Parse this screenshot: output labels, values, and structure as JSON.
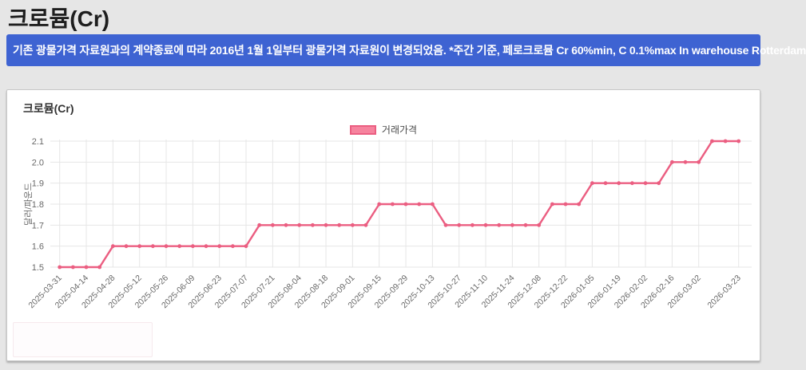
{
  "page": {
    "title": "크로뮴(Cr)",
    "notice": "기존 광물가격 자료원과의 계약종료에 따라 2016년 1월 1일부터 광물가격 자료원이 변경되었음. *주간 기준, 페로크로뮴 Cr 60%min, C 0.1%max In warehouse Rotterdam"
  },
  "card": {
    "title": "크로뮴(Cr)"
  },
  "colors": {
    "banner_blue": "#3e63d2",
    "line_pink": "#eb5e81",
    "legend_fill": "#f6839e",
    "grid": "#e6e6e6",
    "tick_text": "#686868"
  },
  "chart_data": {
    "type": "line",
    "title": "크로뮴(Cr)",
    "ylabel": "달러/파운드",
    "ylim": [
      1.5,
      2.1
    ],
    "yticks": [
      2.1,
      2.0,
      1.9,
      1.8,
      1.7,
      1.6,
      1.5
    ],
    "grid": true,
    "legend_position": "top",
    "x": [
      "2025-03-31",
      "2025-04-07",
      "2025-04-14",
      "2025-04-21",
      "2025-04-28",
      "2025-05-05",
      "2025-05-12",
      "2025-05-19",
      "2025-05-26",
      "2025-06-02",
      "2025-06-09",
      "2025-06-16",
      "2025-06-23",
      "2025-06-30",
      "2025-07-07",
      "2025-07-14",
      "2025-07-21",
      "2025-07-28",
      "2025-08-04",
      "2025-08-11",
      "2025-08-18",
      "2025-08-25",
      "2025-09-01",
      "2025-09-08",
      "2025-09-15",
      "2025-09-22",
      "2025-09-29",
      "2025-10-06",
      "2025-10-13",
      "2025-10-20",
      "2025-10-27",
      "2025-11-03",
      "2025-11-10",
      "2025-11-17",
      "2025-11-24",
      "2025-12-01",
      "2025-12-08",
      "2025-12-15",
      "2025-12-22",
      "2025-12-29",
      "2026-01-05",
      "2026-01-12",
      "2026-01-19",
      "2026-01-26",
      "2026-02-02",
      "2026-02-09",
      "2026-02-16",
      "2026-02-23",
      "2026-03-02",
      "2026-03-09",
      "2026-03-16",
      "2026-03-23"
    ],
    "series": [
      {
        "name": "거래가격",
        "values": [
          1.5,
          1.5,
          1.5,
          1.5,
          1.6,
          1.6,
          1.6,
          1.6,
          1.6,
          1.6,
          1.6,
          1.6,
          1.6,
          1.6,
          1.6,
          1.7,
          1.7,
          1.7,
          1.7,
          1.7,
          1.7,
          1.7,
          1.7,
          1.7,
          1.8,
          1.8,
          1.8,
          1.8,
          1.8,
          1.7,
          1.7,
          1.7,
          1.7,
          1.7,
          1.7,
          1.7,
          1.7,
          1.8,
          1.8,
          1.8,
          1.9,
          1.9,
          1.9,
          1.9,
          1.9,
          1.9,
          2.0,
          2.0,
          2.0,
          2.1,
          2.1,
          2.1
        ]
      }
    ],
    "xtick_indices": [
      0,
      2,
      4,
      6,
      8,
      10,
      12,
      14,
      16,
      18,
      20,
      22,
      24,
      26,
      28,
      30,
      32,
      34,
      36,
      38,
      40,
      42,
      44,
      46,
      48,
      51
    ]
  }
}
